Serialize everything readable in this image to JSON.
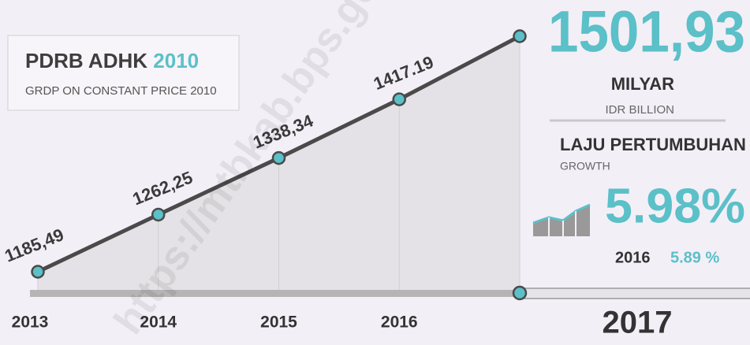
{
  "chart_data": {
    "type": "line",
    "title": "PDRB ADHK",
    "title_year": "2010",
    "subtitle": "GRDP ON CONSTANT PRICE 2010",
    "categories": [
      "2013",
      "2014",
      "2015",
      "2016",
      "2017"
    ],
    "values": [
      1185.49,
      1262.25,
      1338.34,
      1417.19,
      1501.93
    ],
    "value_labels": [
      "1185,49",
      "1262,25",
      "1338,34",
      "1417.19",
      "1501,93"
    ],
    "color": "#5bc0c8",
    "unit": "MILYAR",
    "unit_en": "IDR BILLION",
    "growth_title": "LAJU PERTUMBUHAN",
    "growth_title_en": "GROWTH",
    "growth_value": "5.98%",
    "previous_year": "2016",
    "previous_growth": "5.89 %",
    "watermark": "https://mtbkab.bps.go."
  }
}
